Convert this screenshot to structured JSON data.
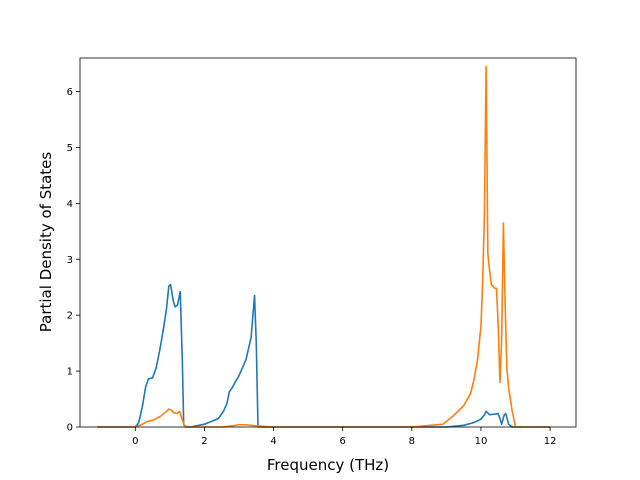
{
  "chart_data": {
    "type": "line",
    "title": "",
    "xlabel": "Frequency (THz)",
    "ylabel": "Partial Density of States",
    "xlim": [
      -1.6,
      12.75
    ],
    "ylim": [
      0,
      6.6
    ],
    "xticks": [
      0,
      2,
      4,
      6,
      8,
      10,
      12
    ],
    "yticks": [
      0,
      1,
      2,
      3,
      4,
      5,
      6
    ],
    "grid": false,
    "legend": "none",
    "series": [
      {
        "color": "#1f77b4",
        "x": [
          -1.1,
          0.0,
          0.1,
          0.2,
          0.3,
          0.38,
          0.5,
          0.6,
          0.7,
          0.8,
          0.9,
          0.97,
          1.02,
          1.1,
          1.15,
          1.22,
          1.3,
          1.36,
          1.4,
          1.45,
          1.6,
          2.0,
          2.4,
          2.55,
          2.65,
          2.72,
          2.8,
          3.0,
          3.2,
          3.35,
          3.45,
          3.5,
          3.55,
          4.0,
          6.0,
          8.0,
          9.0,
          9.5,
          9.8,
          10.0,
          10.1,
          10.15,
          10.25,
          10.4,
          10.5,
          10.55,
          10.6,
          10.67,
          10.72,
          10.8,
          10.9,
          11.0,
          12.0
        ],
        "y": [
          0.0,
          0.0,
          0.08,
          0.35,
          0.72,
          0.86,
          0.88,
          1.05,
          1.35,
          1.7,
          2.1,
          2.52,
          2.55,
          2.25,
          2.15,
          2.18,
          2.42,
          1.2,
          0.05,
          0.0,
          0.0,
          0.05,
          0.15,
          0.28,
          0.42,
          0.63,
          0.7,
          0.92,
          1.2,
          1.6,
          2.35,
          1.5,
          0.0,
          0.0,
          0.0,
          0.0,
          0.0,
          0.03,
          0.08,
          0.14,
          0.22,
          0.28,
          0.22,
          0.23,
          0.24,
          0.15,
          0.05,
          0.21,
          0.24,
          0.05,
          0.0,
          0.0,
          0.0
        ]
      },
      {
        "color": "#ff7f0e",
        "x": [
          -1.1,
          0.0,
          0.2,
          0.35,
          0.5,
          0.6,
          0.75,
          0.9,
          0.97,
          1.05,
          1.1,
          1.2,
          1.28,
          1.35,
          1.42,
          1.5,
          2.0,
          2.5,
          2.8,
          3.0,
          3.2,
          3.5,
          4.0,
          6.0,
          8.0,
          8.9,
          9.2,
          9.5,
          9.7,
          9.8,
          9.9,
          10.0,
          10.05,
          10.1,
          10.15,
          10.2,
          10.25,
          10.3,
          10.4,
          10.45,
          10.5,
          10.55,
          10.6,
          10.65,
          10.7,
          10.75,
          10.8,
          10.9,
          11.0,
          11.1,
          12.0
        ],
        "y": [
          0.0,
          0.0,
          0.05,
          0.1,
          0.12,
          0.15,
          0.2,
          0.28,
          0.32,
          0.3,
          0.26,
          0.24,
          0.28,
          0.15,
          0.02,
          0.0,
          0.0,
          0.0,
          0.02,
          0.04,
          0.04,
          0.02,
          0.0,
          0.0,
          0.0,
          0.05,
          0.2,
          0.38,
          0.6,
          0.85,
          1.2,
          1.8,
          2.6,
          3.8,
          6.45,
          3.1,
          2.8,
          2.55,
          2.48,
          2.48,
          1.8,
          0.8,
          1.6,
          3.65,
          2.2,
          1.05,
          0.7,
          0.3,
          0.0,
          0.0,
          0.0
        ]
      }
    ]
  }
}
